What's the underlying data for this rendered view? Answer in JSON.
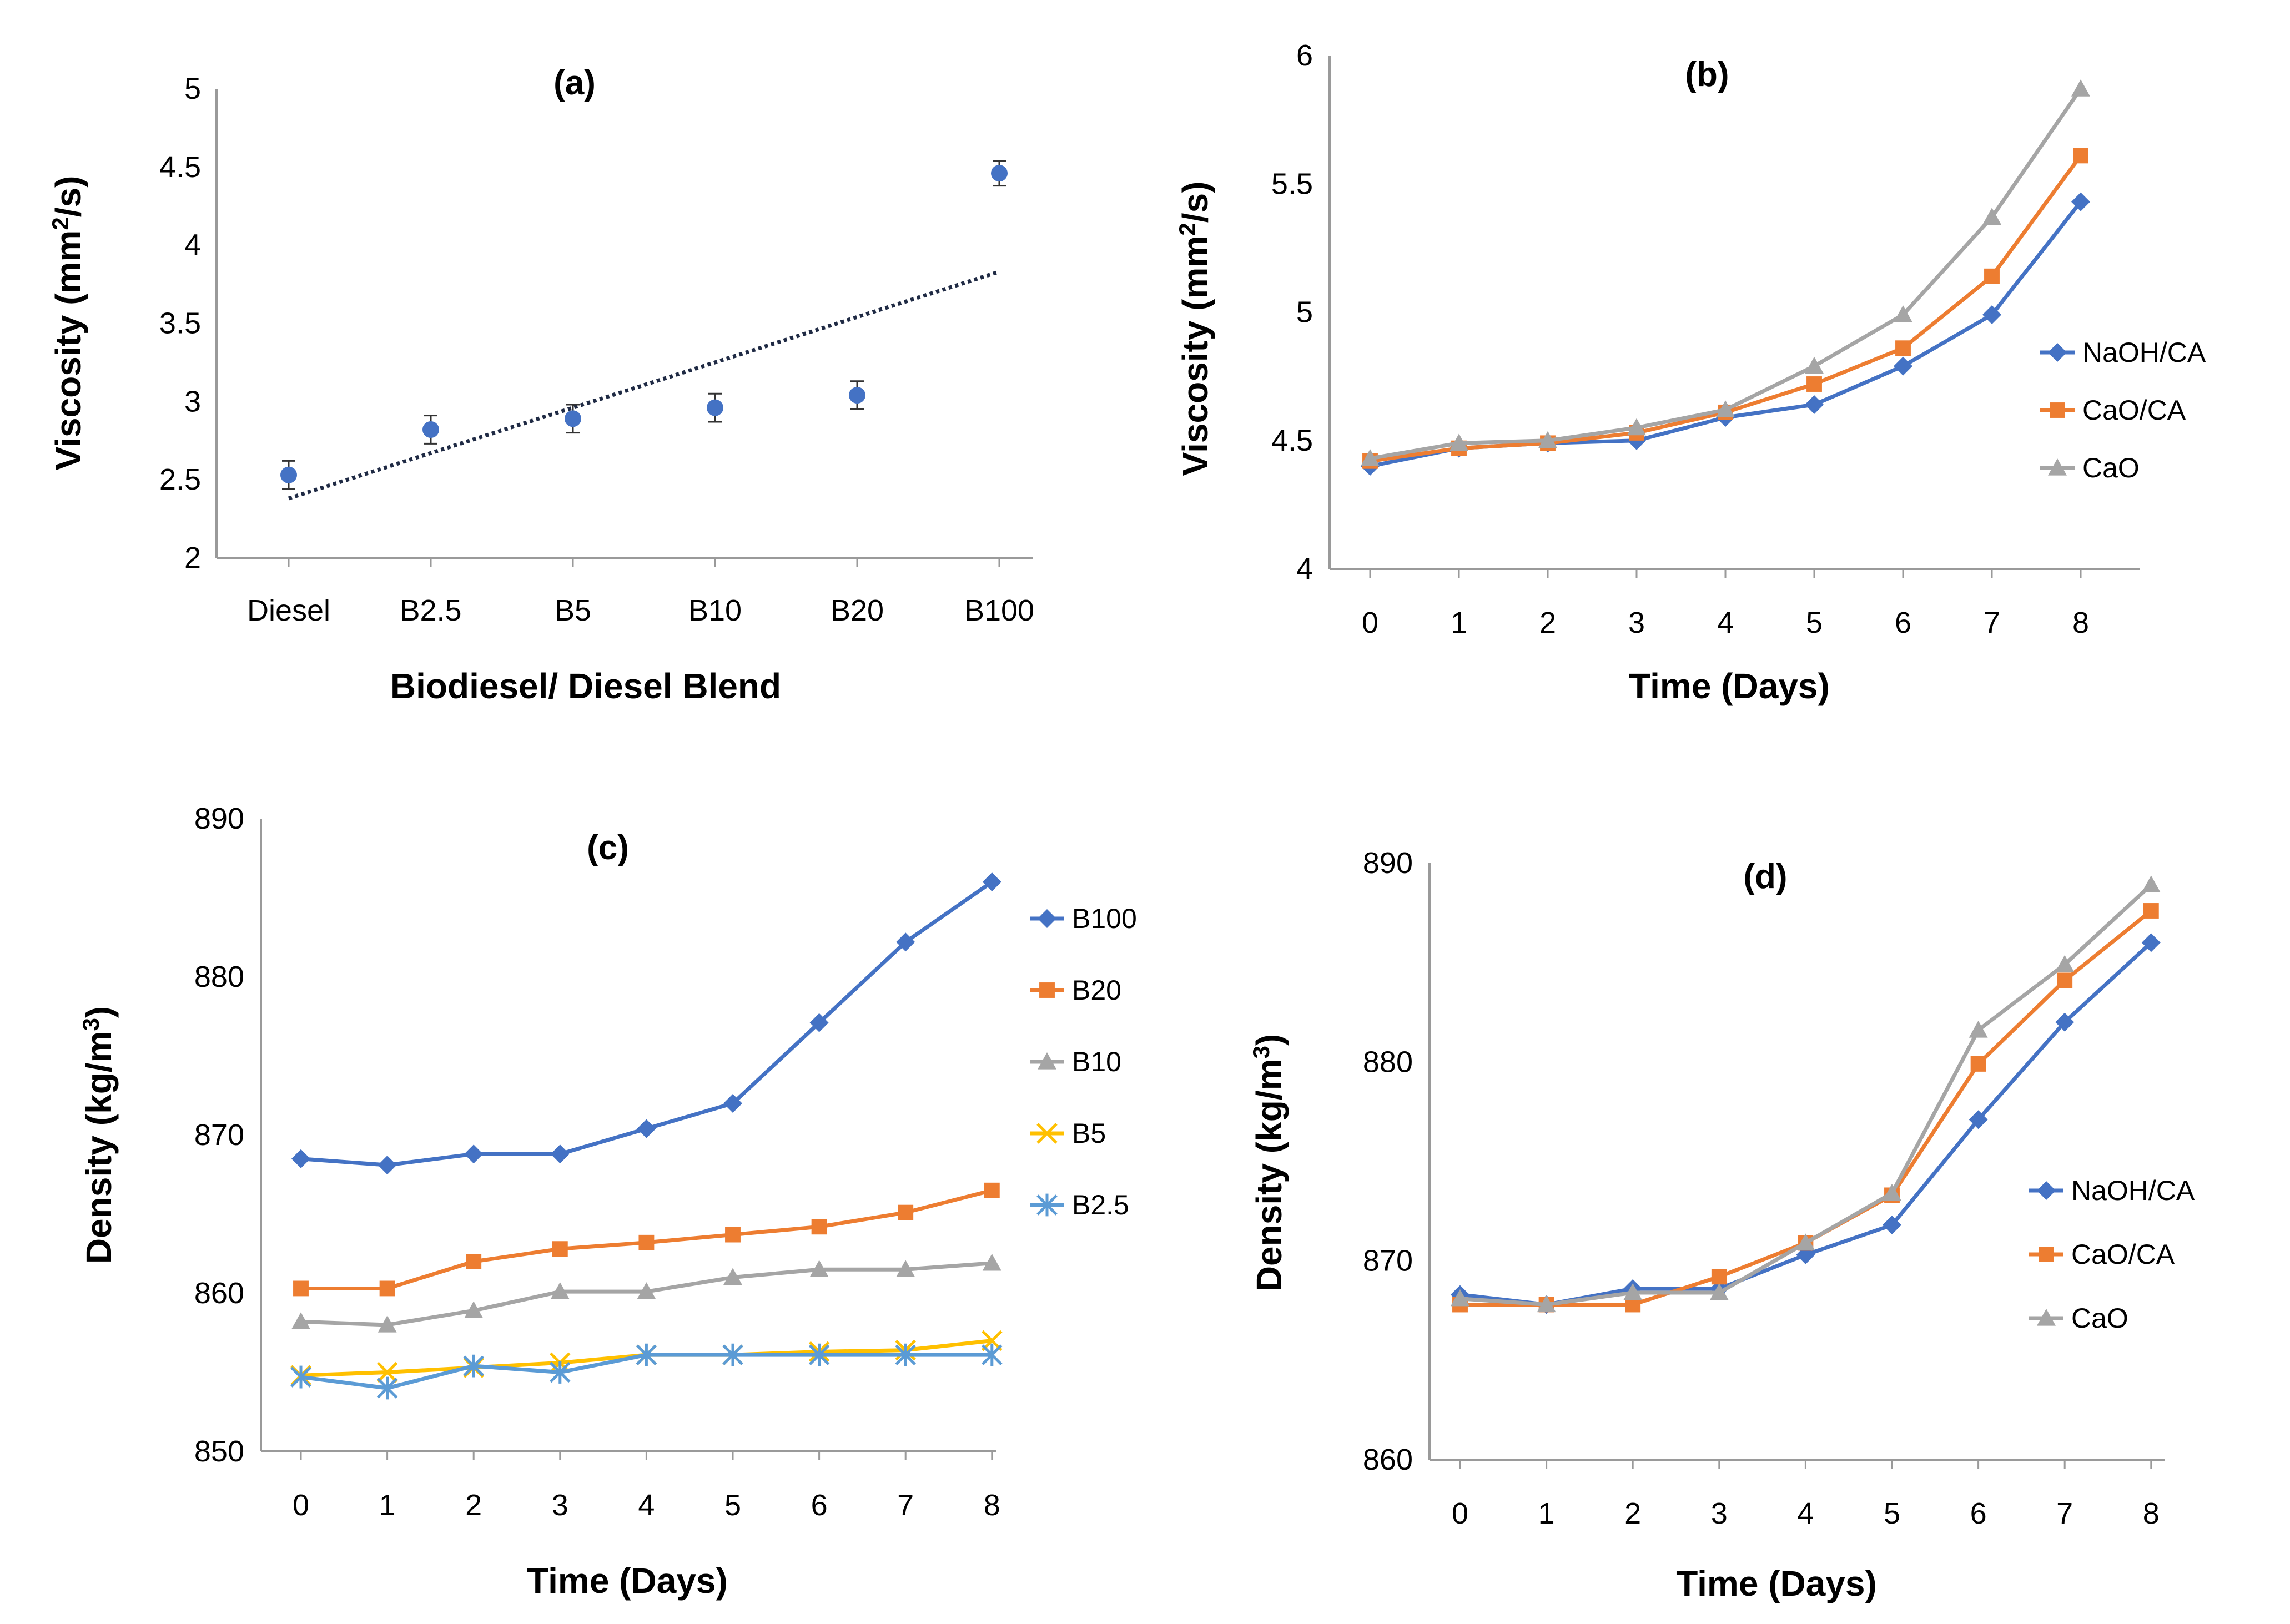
{
  "chart_data": [
    {
      "id": "a",
      "type": "scatter",
      "title": "(a)",
      "xlabel": "Biodiesel/ Diesel Blend",
      "ylabel": "Viscosity (mm²/s)",
      "ylim": [
        2,
        5
      ],
      "yticks": [
        "2",
        "2.5",
        "3",
        "3.5",
        "4",
        "4.5",
        "5"
      ],
      "categories": [
        "Diesel",
        "B2.5",
        "B5",
        "B10",
        "B20",
        "B100"
      ],
      "series": [
        {
          "name": "Viscosity",
          "color": "#4472C4",
          "marker": "circle",
          "values": [
            2.53,
            2.82,
            2.89,
            2.96,
            3.04,
            4.46
          ],
          "errors": [
            0.09,
            0.09,
            0.09,
            0.09,
            0.09,
            0.08
          ]
        }
      ],
      "trendline": {
        "type": "linear",
        "style": "dotted",
        "color": "#1F2A44",
        "start": 2.38,
        "end": 3.83
      }
    },
    {
      "id": "b",
      "type": "line",
      "title": "(b)",
      "xlabel": "Time (Days)",
      "ylabel": "Viscosity (mm²/s)",
      "ylim": [
        4,
        6
      ],
      "yticks": [
        "4",
        "4.5",
        "5",
        "5.5",
        "6"
      ],
      "categories": [
        "0",
        "1",
        "2",
        "3",
        "4",
        "5",
        "6",
        "7",
        "8"
      ],
      "legend_position": "right",
      "series": [
        {
          "name": "NaOH/CA",
          "color": "#4472C4",
          "marker": "diamond",
          "values": [
            4.4,
            4.47,
            4.49,
            4.5,
            4.59,
            4.64,
            4.79,
            4.99,
            5.43
          ]
        },
        {
          "name": "CaO/CA",
          "color": "#ED7D31",
          "marker": "square",
          "values": [
            4.42,
            4.47,
            4.49,
            4.53,
            4.61,
            4.72,
            4.86,
            5.14,
            5.61
          ]
        },
        {
          "name": "CaO",
          "color": "#A5A5A5",
          "marker": "triangle",
          "values": [
            4.43,
            4.49,
            4.5,
            4.55,
            4.62,
            4.79,
            4.99,
            5.37,
            5.87
          ]
        }
      ]
    },
    {
      "id": "c",
      "type": "line",
      "title": "(c)",
      "xlabel": "Time (Days)",
      "ylabel": "Density (kg/m³)",
      "ylim": [
        850,
        890
      ],
      "yticks": [
        "850",
        "860",
        "870",
        "880",
        "890"
      ],
      "categories": [
        "0",
        "1",
        "2",
        "3",
        "4",
        "5",
        "6",
        "7",
        "8"
      ],
      "legend_position": "right",
      "series": [
        {
          "name": "B100",
          "color": "#4472C4",
          "marker": "diamond",
          "values": [
            868.5,
            868.1,
            868.8,
            868.8,
            870.4,
            872.0,
            877.1,
            882.2,
            886.0
          ]
        },
        {
          "name": "B20",
          "color": "#ED7D31",
          "marker": "square",
          "values": [
            860.3,
            860.3,
            862.0,
            862.8,
            863.2,
            863.7,
            864.2,
            865.1,
            866.5
          ]
        },
        {
          "name": "B10",
          "color": "#A5A5A5",
          "marker": "triangle",
          "values": [
            858.2,
            858.0,
            858.9,
            860.1,
            860.1,
            861.0,
            861.5,
            861.5,
            861.9
          ]
        },
        {
          "name": "B5",
          "color": "#FFC000",
          "marker": "x",
          "values": [
            854.8,
            855.0,
            855.3,
            855.6,
            856.1,
            856.1,
            856.3,
            856.4,
            857.0
          ]
        },
        {
          "name": "B2.5",
          "color": "#5B9BD5",
          "marker": "star",
          "values": [
            854.7,
            854.0,
            855.4,
            855.0,
            856.1,
            856.1,
            856.1,
            856.1,
            856.1
          ]
        }
      ]
    },
    {
      "id": "d",
      "type": "line",
      "title": "(d)",
      "xlabel": "Time (Days)",
      "ylabel": "Density (kg/m³)",
      "ylim": [
        860,
        890
      ],
      "yticks": [
        "860",
        "870",
        "880",
        "890"
      ],
      "categories": [
        "0",
        "1",
        "2",
        "3",
        "4",
        "5",
        "6",
        "7",
        "8"
      ],
      "legend_position": "right",
      "series": [
        {
          "name": "NaOH/CA",
          "color": "#4472C4",
          "marker": "diamond",
          "values": [
            868.3,
            867.8,
            868.6,
            868.6,
            870.3,
            871.8,
            877.1,
            882.0,
            886.0
          ]
        },
        {
          "name": "CaO/CA",
          "color": "#ED7D31",
          "marker": "square",
          "values": [
            867.8,
            867.8,
            867.8,
            869.2,
            870.9,
            873.3,
            879.9,
            884.1,
            887.6
          ]
        },
        {
          "name": "CaO",
          "color": "#A5A5A5",
          "marker": "triangle",
          "values": [
            868.1,
            867.8,
            868.4,
            868.4,
            870.9,
            873.4,
            881.6,
            884.9,
            888.9
          ]
        }
      ]
    }
  ]
}
